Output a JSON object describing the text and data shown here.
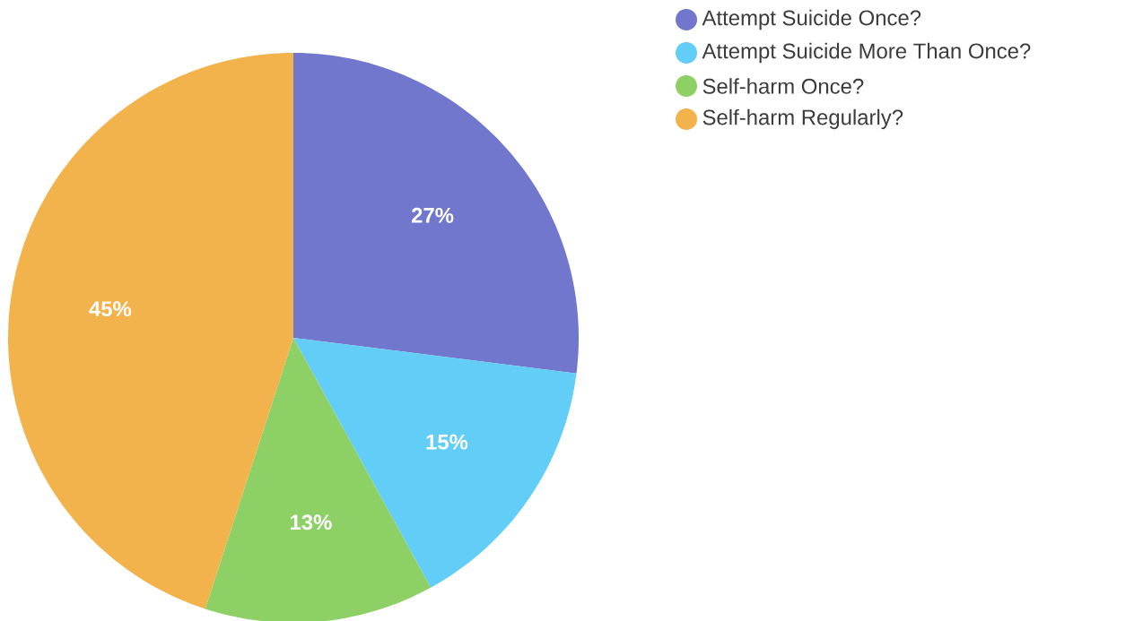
{
  "chart_data": {
    "type": "pie",
    "categories": [
      "Attempt Suicide Once?",
      "Attempt Suicide More Than Once?",
      "Self-harm Once?",
      "Self-harm Regularly?"
    ],
    "values": [
      27,
      15,
      13,
      45
    ],
    "value_labels": [
      "27%",
      "15%",
      "13%",
      "45%"
    ],
    "colors": [
      "#7177cc",
      "#62cdf7",
      "#8dd066",
      "#f3b34c"
    ],
    "legend": "top right"
  }
}
